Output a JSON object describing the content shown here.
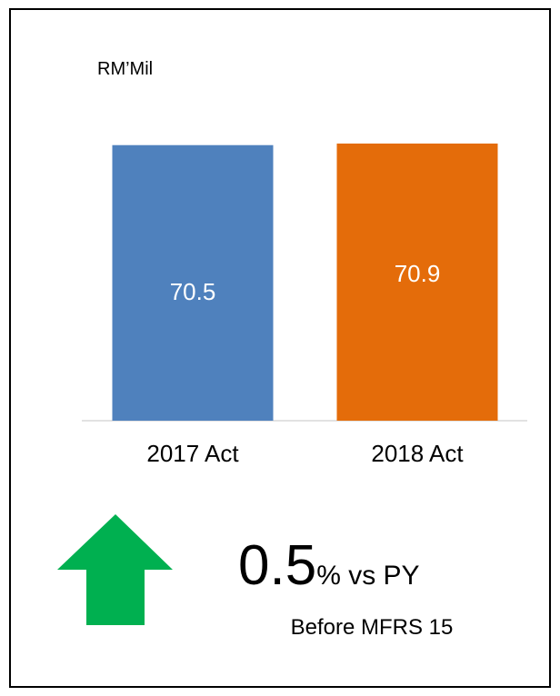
{
  "chart_data": {
    "type": "bar",
    "unit_label": "RM’Mil",
    "categories": [
      "2017 Act",
      "2018 Act"
    ],
    "values": [
      70.5,
      70.9
    ],
    "colors": [
      "#4f81bd",
      "#e46c0a"
    ],
    "change": 0.5,
    "change_label": "% vs PY",
    "note": "Before MFRS 15"
  }
}
